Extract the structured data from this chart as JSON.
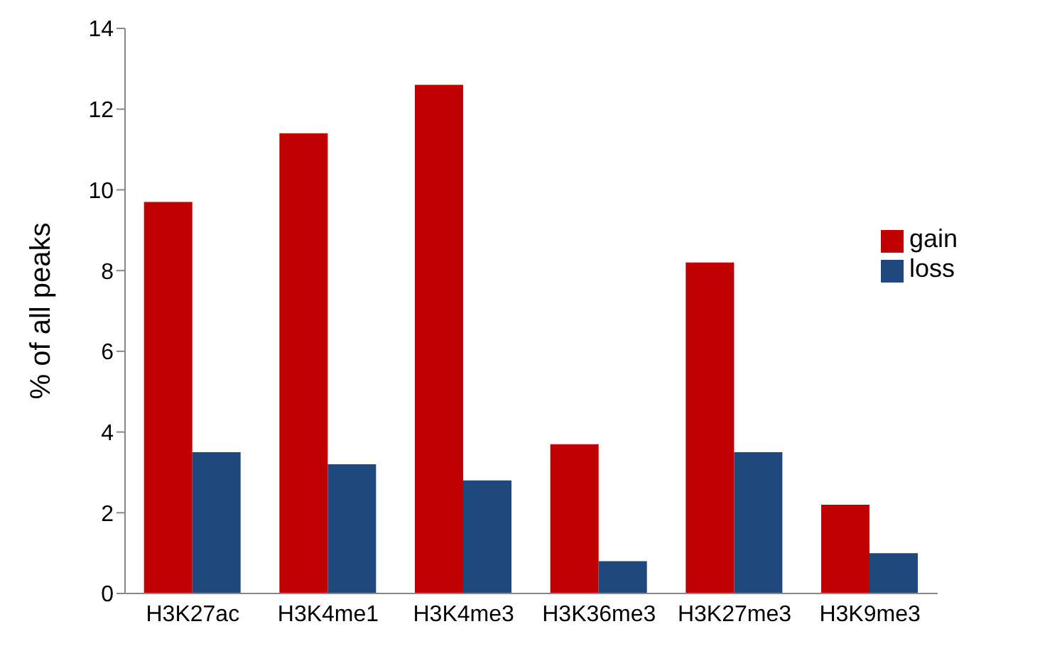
{
  "chart_data": {
    "type": "bar",
    "ylabel": "% of all peaks",
    "categories": [
      "H3K27ac",
      "H3K4me1",
      "H3K4me3",
      "H3K36me3",
      "H3K27me3",
      "H3K9me3"
    ],
    "series": [
      {
        "name": "gain",
        "color": "#c00000",
        "values": [
          9.7,
          11.4,
          12.6,
          3.7,
          8.2,
          2.2
        ]
      },
      {
        "name": "loss",
        "color": "#1f497d",
        "values": [
          3.5,
          3.2,
          2.8,
          0.8,
          3.5,
          1.0
        ]
      }
    ],
    "ylim": [
      0,
      14
    ],
    "yticks": [
      0,
      2,
      4,
      6,
      8,
      10,
      12,
      14
    ],
    "grid": false,
    "legend": "right"
  }
}
